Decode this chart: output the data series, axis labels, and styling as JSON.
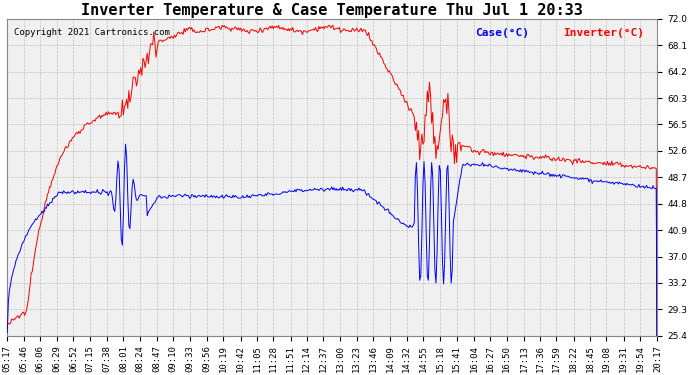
{
  "title": "Inverter Temperature & Case Temperature Thu Jul 1 20:33",
  "copyright": "Copyright 2021 Cartronics.com",
  "legend_labels": [
    "Case(°C)",
    "Inverter(°C)"
  ],
  "legend_colors": [
    "blue",
    "red"
  ],
  "yticks": [
    25.4,
    29.3,
    33.2,
    37.0,
    40.9,
    44.8,
    48.7,
    52.6,
    56.5,
    60.3,
    64.2,
    68.1,
    72.0
  ],
  "ylim": [
    25.4,
    72.0
  ],
  "background_color": "#f0f0f0",
  "grid_color": "#bbbbbb",
  "title_fontsize": 11,
  "tick_fontsize": 6.5,
  "time_labels": [
    "05:17",
    "05:46",
    "06:06",
    "06:29",
    "06:52",
    "07:15",
    "07:38",
    "08:01",
    "08:24",
    "08:47",
    "09:10",
    "09:33",
    "09:56",
    "10:19",
    "10:42",
    "11:05",
    "11:28",
    "11:51",
    "12:14",
    "12:37",
    "13:00",
    "13:23",
    "13:46",
    "14:09",
    "14:32",
    "14:55",
    "15:18",
    "15:41",
    "16:04",
    "16:27",
    "16:50",
    "17:13",
    "17:36",
    "17:59",
    "18:22",
    "18:45",
    "19:08",
    "19:31",
    "19:54",
    "20:17"
  ]
}
